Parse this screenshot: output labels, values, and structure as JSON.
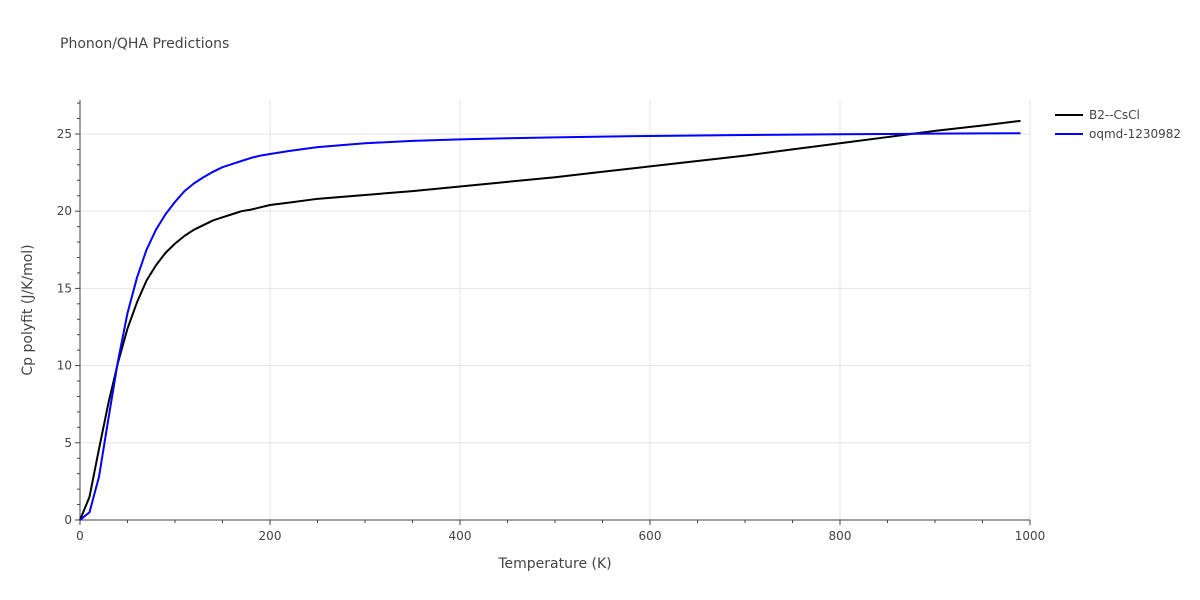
{
  "chart_data": {
    "type": "line",
    "title": "Phonon/QHA Predictions",
    "xlabel": "Temperature (K)",
    "ylabel": "Cp polyfit (J/K/mol)",
    "xlim": [
      0,
      1000
    ],
    "ylim": [
      0,
      27.2
    ],
    "x_ticks": [
      0,
      200,
      400,
      600,
      800,
      1000
    ],
    "x_tick_labels": [
      "0",
      "200",
      "400",
      "600",
      "800",
      "1000"
    ],
    "y_ticks": [
      0,
      5,
      10,
      15,
      20,
      25
    ],
    "y_tick_labels": [
      "0",
      "5",
      "10",
      "15",
      "20",
      "25"
    ],
    "grid": true,
    "legend_position": "top-right",
    "series": [
      {
        "name": "B2--CsCl",
        "color": "#000000",
        "x": [
          0,
          10,
          20,
          30,
          40,
          50,
          60,
          70,
          80,
          90,
          100,
          110,
          120,
          130,
          140,
          150,
          160,
          170,
          180,
          190,
          200,
          220,
          250,
          300,
          350,
          400,
          450,
          500,
          550,
          600,
          650,
          700,
          750,
          800,
          850,
          900,
          950,
          990
        ],
        "y": [
          0,
          1.5,
          4.6,
          7.6,
          10.2,
          12.4,
          14.1,
          15.5,
          16.5,
          17.3,
          17.9,
          18.4,
          18.8,
          19.1,
          19.4,
          19.6,
          19.8,
          20.0,
          20.1,
          20.25,
          20.4,
          20.55,
          20.8,
          21.05,
          21.3,
          21.6,
          21.9,
          22.2,
          22.55,
          22.9,
          23.25,
          23.6,
          24.0,
          24.4,
          24.8,
          25.2,
          25.55,
          25.85
        ]
      },
      {
        "name": "oqmd-1230982",
        "color": "#0000ff",
        "x": [
          0,
          10,
          20,
          30,
          40,
          50,
          60,
          70,
          80,
          90,
          100,
          110,
          120,
          130,
          140,
          150,
          160,
          170,
          180,
          190,
          200,
          220,
          250,
          300,
          350,
          400,
          450,
          500,
          550,
          600,
          650,
          700,
          750,
          800,
          850,
          900,
          950,
          990
        ],
        "y": [
          0,
          0.5,
          2.8,
          6.6,
          10.3,
          13.4,
          15.7,
          17.5,
          18.8,
          19.8,
          20.6,
          21.3,
          21.8,
          22.2,
          22.55,
          22.85,
          23.05,
          23.25,
          23.45,
          23.6,
          23.7,
          23.9,
          24.15,
          24.4,
          24.55,
          24.65,
          24.72,
          24.78,
          24.83,
          24.87,
          24.9,
          24.93,
          24.96,
          24.98,
          25.0,
          25.02,
          25.04,
          25.05
        ]
      }
    ]
  }
}
